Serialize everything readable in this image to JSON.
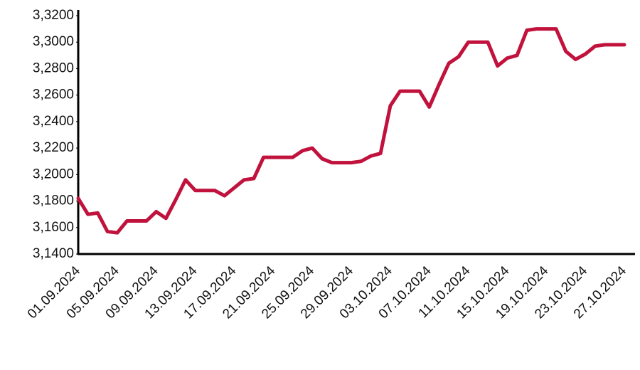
{
  "chart_data": {
    "type": "line",
    "categories": [
      "01.09.2024",
      null,
      null,
      null,
      "05.09.2024",
      null,
      null,
      null,
      "09.09.2024",
      null,
      null,
      null,
      "13.09.2024",
      null,
      null,
      null,
      "17.09.2024",
      null,
      null,
      null,
      "21.09.2024",
      null,
      null,
      null,
      "25.09.2024",
      null,
      null,
      null,
      "29.09.2024",
      null,
      null,
      null,
      "03.10.2024",
      null,
      null,
      null,
      "07.10.2024",
      null,
      null,
      null,
      "11.10.2024",
      null,
      null,
      null,
      "15.10.2024",
      null,
      null,
      null,
      "19.10.2024",
      null,
      null,
      null,
      "23.10.2024",
      null,
      null,
      null,
      "27.10.2024"
    ],
    "series": [
      {
        "color": "#c0123c",
        "values": [
          3.182,
          3.17,
          3.171,
          3.157,
          3.156,
          3.165,
          3.165,
          3.165,
          3.172,
          3.167,
          3.181,
          3.196,
          3.188,
          3.188,
          3.188,
          3.184,
          3.19,
          3.196,
          3.197,
          3.213,
          3.213,
          3.213,
          3.213,
          3.218,
          3.22,
          3.212,
          3.209,
          3.209,
          3.209,
          3.21,
          3.214,
          3.216,
          3.252,
          3.263,
          3.263,
          3.263,
          3.251,
          3.268,
          3.284,
          3.289,
          3.3,
          3.3,
          3.3,
          3.282,
          3.288,
          3.29,
          3.309,
          3.31,
          3.31,
          3.31,
          3.293,
          3.287,
          3.291,
          3.297,
          3.298,
          3.298,
          3.298
        ]
      }
    ],
    "ylim": [
      3.14,
      3.32
    ],
    "yticks": [
      {
        "value": 3.14,
        "label": "3,1400"
      },
      {
        "value": 3.16,
        "label": "3,1600"
      },
      {
        "value": 3.18,
        "label": "3,1800"
      },
      {
        "value": 3.2,
        "label": "3,2000"
      },
      {
        "value": 3.22,
        "label": "3,2200"
      },
      {
        "value": 3.24,
        "label": "3,2400"
      },
      {
        "value": 3.26,
        "label": "3,2600"
      },
      {
        "value": 3.28,
        "label": "3,2800"
      },
      {
        "value": 3.3,
        "label": "3,3000"
      },
      {
        "value": 3.32,
        "label": "3,3200"
      }
    ],
    "grid": false
  }
}
